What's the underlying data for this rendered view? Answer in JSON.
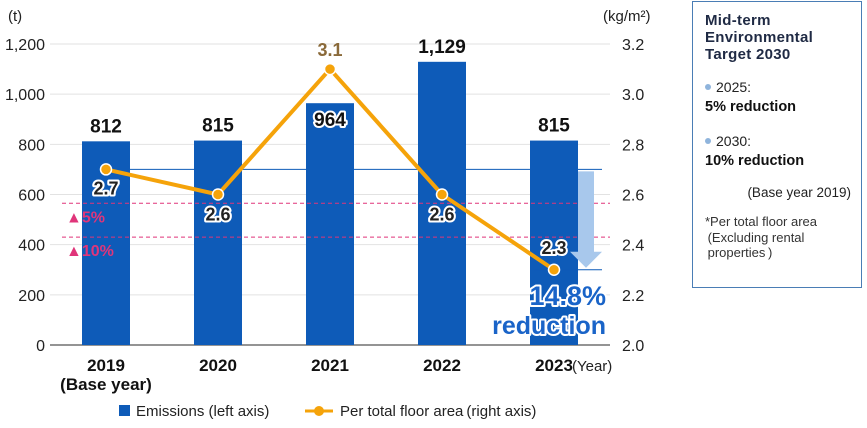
{
  "chart_data": {
    "type": "bar+line",
    "categories": [
      "2019\n(Base year)",
      "2020",
      "2021",
      "2022",
      "2023"
    ],
    "bar_series": {
      "name": "Emissions (left axis)",
      "values": [
        812,
        815,
        964,
        1129,
        815
      ],
      "labels": [
        "812",
        "815",
        "964",
        "1,129",
        "815"
      ],
      "color": "#0e5bb8"
    },
    "line_series": {
      "name": "Per total floor area (right axis)",
      "values": [
        2.7,
        2.6,
        3.1,
        2.6,
        2.3
      ],
      "labels": [
        "2.7",
        "2.6",
        "3.1",
        "2.6",
        "2.3"
      ],
      "color": "#f5a30a",
      "highlight_color": "#8a6a3a"
    },
    "left_axis": {
      "unit": "(t)",
      "ylim": [
        0,
        1200
      ],
      "ticks": [
        "0",
        "200",
        "400",
        "600",
        "800",
        "1,000",
        "1,200"
      ]
    },
    "right_axis": {
      "unit": "(kg/m²)",
      "ylim": [
        2.0,
        3.2
      ],
      "ticks": [
        "2.0",
        "2.2",
        "2.4",
        "2.6",
        "2.8",
        "3.0",
        "3.2"
      ]
    },
    "x_axis_unit": "(Year)",
    "target_lines": [
      {
        "label": "▲5%",
        "value_right": 2.565,
        "color": "#e0357a"
      },
      {
        "label": "▲10%",
        "value_right": 2.43,
        "color": "#e0357a"
      }
    ],
    "reference_lines": [
      {
        "value_right": 2.7,
        "color": "#0e5bb8"
      },
      {
        "value_right": 2.3,
        "color": "#0e5bb8"
      }
    ],
    "reduction_label": [
      "14.8%",
      "reduction"
    ],
    "reduction_color": "#1a64c8",
    "arrow_color": "#a8c8ec",
    "grid": true
  },
  "note": {
    "title": [
      "Mid-term",
      "Environmental",
      "Target 2030"
    ],
    "items": [
      {
        "label": "2025:",
        "value": "5% reduction"
      },
      {
        "label": "2030:",
        "value": "10% reduction"
      }
    ],
    "base_year": "(Base year 2019)",
    "footnote": [
      "*Per total floor area",
      " (Excluding rental",
      " properties )"
    ]
  }
}
